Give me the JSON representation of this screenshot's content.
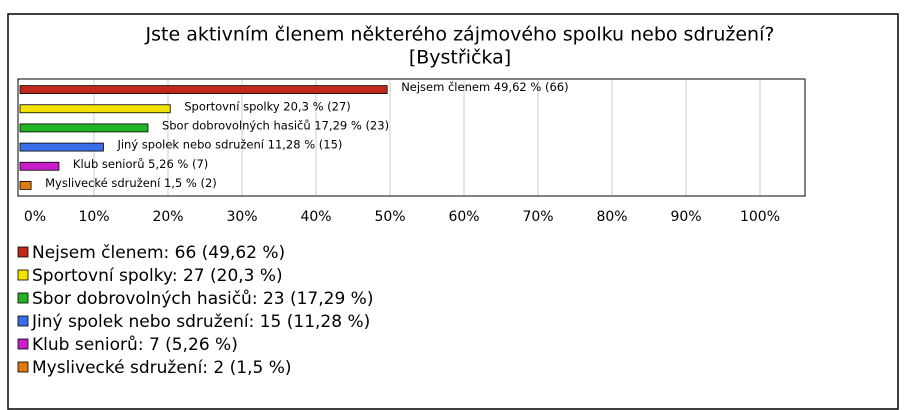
{
  "chart_data": {
    "type": "barh",
    "title": "Jste aktivním členem některého zájmového spolku nebo sdružení?",
    "subtitle": "[Bystřička]",
    "categories": [
      "Nejsem členem",
      "Sportovní spolky",
      "Sbor dobrovolných hasičů",
      "Jiný spolek nebo sdružení",
      "Klub seniorů",
      "Myslivecké sdružení"
    ],
    "values": [
      49.62,
      20.3,
      17.29,
      11.28,
      5.26,
      1.5
    ],
    "value_labels": [
      "Nejsem členem 49,62 % (66)",
      "Sportovní spolky 20,3 % (27)",
      "Sbor dobrovolných hasičů 17,29 % (23)",
      "Jiný spolek nebo sdružení 11,28 % (15)",
      "Klub seniorů 5,26 % (7)",
      "Myslivecké sdružení 1,5 % (2)"
    ],
    "legend_labels": [
      "Nejsem členem: 66 (49,62 %)",
      "Sportovní spolky: 27 (20,3 %)",
      "Sbor dobrovolných hasičů: 23 (17,29 %)",
      "Jiný spolek nebo sdružení: 15 (11,28 %)",
      "Klub seniorů: 7 (5,26 %)",
      "Myslivecké sdružení: 2 (1,5 %)"
    ],
    "colors": [
      "#c0281c",
      "#f2e200",
      "#22b422",
      "#3a6ee8",
      "#c81ec8",
      "#e07a10"
    ],
    "xlim": [
      0,
      100
    ],
    "xticks": [
      {
        "value": 0,
        "label": "0%"
      },
      {
        "value": 10,
        "label": "10%"
      },
      {
        "value": 20,
        "label": "20%"
      },
      {
        "value": 30,
        "label": "30%"
      },
      {
        "value": 40,
        "label": "40%"
      },
      {
        "value": 50,
        "label": "50%"
      },
      {
        "value": 60,
        "label": "60%"
      },
      {
        "value": 70,
        "label": "70%"
      },
      {
        "value": 80,
        "label": "80%"
      },
      {
        "value": 90,
        "label": "90%"
      },
      {
        "value": 100,
        "label": "100%"
      }
    ],
    "grid": true
  }
}
